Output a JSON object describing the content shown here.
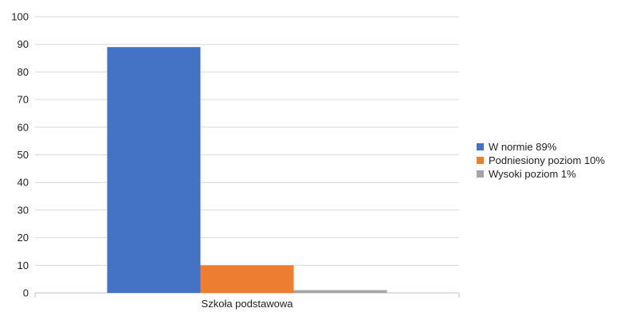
{
  "chart_data": {
    "type": "bar",
    "categories": [
      "Szkoła podstawowa"
    ],
    "series": [
      {
        "name": "W normie 89%",
        "values": [
          89
        ],
        "color": "#4472C4"
      },
      {
        "name": "Podniesiony poziom 10%",
        "values": [
          10
        ],
        "color": "#ED7D31"
      },
      {
        "name": "Wysoki poziom 1%",
        "values": [
          1
        ],
        "color": "#A5A5A5"
      }
    ],
    "ylim": [
      0,
      100
    ],
    "yticks": [
      0,
      10,
      20,
      30,
      40,
      50,
      60,
      70,
      80,
      90,
      100
    ],
    "grid": true,
    "legend_position": "right",
    "title": "",
    "xlabel": "",
    "ylabel": ""
  }
}
